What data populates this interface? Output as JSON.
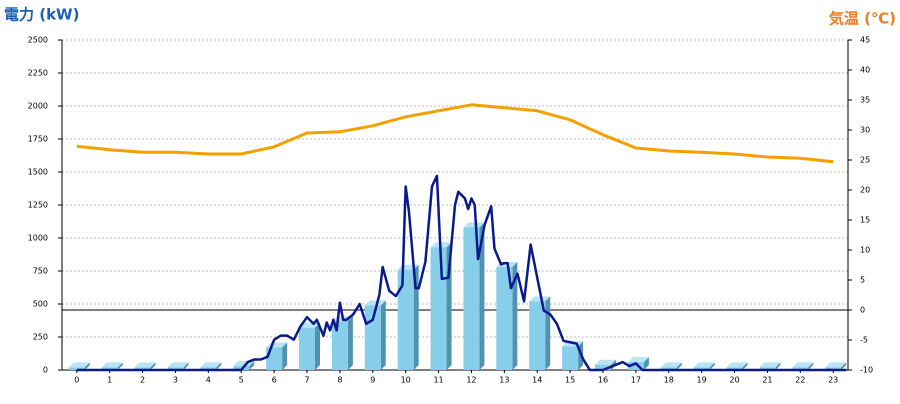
{
  "chart_data": {
    "type": "bar-line",
    "ylabel": "電力 (kW)",
    "y2label": "気温 (℃)",
    "categories": [
      "0",
      "1",
      "2",
      "3",
      "4",
      "5",
      "6",
      "7",
      "8",
      "9",
      "10",
      "11",
      "12",
      "13",
      "14",
      "15",
      "16",
      "17",
      "18",
      "19",
      "20",
      "21",
      "22",
      "23"
    ],
    "xlim": [
      -0.45,
      23.45
    ],
    "ylim": [
      0,
      2500
    ],
    "yticks": [
      0,
      250,
      500,
      750,
      1000,
      1250,
      1500,
      1750,
      2000,
      2250,
      2500
    ],
    "y2lim": [
      -10,
      45
    ],
    "y2ticks": [
      -10,
      -5,
      0,
      5,
      10,
      15,
      20,
      25,
      30,
      35,
      40,
      45
    ],
    "grid": true,
    "zero_line_y2": 0,
    "series": [
      {
        "type": "bar",
        "color": "#87ceeb",
        "values": [
          20,
          20,
          20,
          20,
          20,
          30,
          170,
          320,
          370,
          490,
          760,
          930,
          1080,
          780,
          520,
          180,
          40,
          60,
          20,
          20,
          20,
          20,
          20,
          20
        ]
      },
      {
        "type": "line",
        "axis": "y2",
        "color": "#f5a000",
        "values": [
          27.3,
          26.7,
          26.3,
          26.3,
          26,
          26,
          27.2,
          29.5,
          29.7,
          30.7,
          32.2,
          33.2,
          34.2,
          33.7,
          33.2,
          31.7,
          29.2,
          27,
          26.5,
          26.3,
          26,
          25.5,
          25.3,
          24.7
        ]
      },
      {
        "type": "line",
        "color": "#0a1a8c",
        "x": [
          0,
          5.0,
          5.2,
          5.4,
          5.6,
          5.8,
          6.0,
          6.2,
          6.4,
          6.6,
          6.8,
          7.0,
          7.2,
          7.3,
          7.5,
          7.6,
          7.7,
          7.8,
          7.9,
          8.0,
          8.1,
          8.2,
          8.4,
          8.6,
          8.8,
          9.0,
          9.2,
          9.3,
          9.5,
          9.7,
          9.9,
          10.0,
          10.1,
          10.3,
          10.4,
          10.6,
          10.8,
          10.95,
          11.1,
          11.3,
          11.5,
          11.6,
          11.8,
          11.9,
          12.0,
          12.1,
          12.2,
          12.4,
          12.6,
          12.7,
          12.9,
          13.0,
          13.1,
          13.2,
          13.4,
          13.6,
          13.8,
          14.0,
          14.2,
          14.4,
          14.6,
          14.8,
          15.0,
          15.2,
          15.4,
          15.6,
          16.0,
          16.6,
          16.8,
          17.0,
          17.2,
          23.4
        ],
        "values": [
          0,
          0,
          60,
          80,
          80,
          100,
          230,
          260,
          260,
          230,
          330,
          400,
          350,
          380,
          260,
          360,
          300,
          380,
          300,
          510,
          380,
          380,
          420,
          500,
          350,
          380,
          570,
          780,
          600,
          560,
          640,
          1390,
          1200,
          620,
          620,
          820,
          1390,
          1470,
          690,
          700,
          1250,
          1350,
          1300,
          1220,
          1300,
          1250,
          840,
          1100,
          1240,
          920,
          800,
          810,
          810,
          620,
          730,
          520,
          950,
          700,
          450,
          420,
          350,
          220,
          210,
          200,
          80,
          0,
          0,
          60,
          30,
          50,
          0,
          0
        ]
      }
    ]
  }
}
